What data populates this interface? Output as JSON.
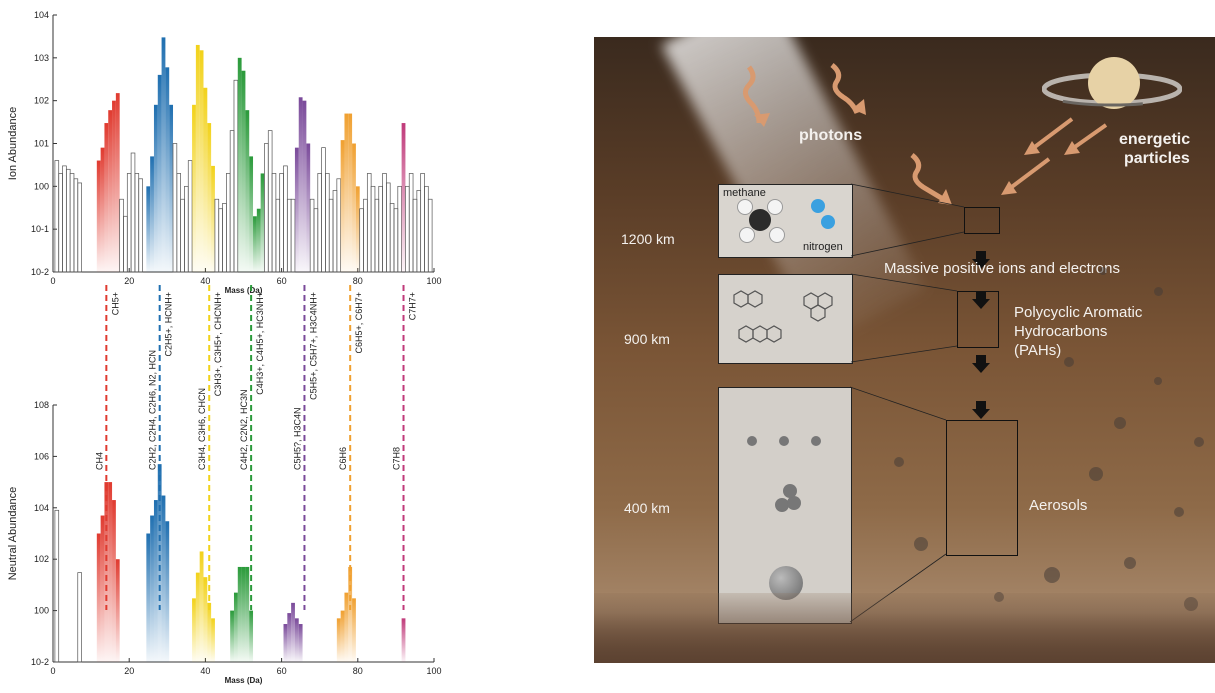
{
  "chart_data": [
    {
      "type": "bar",
      "ylabel": "Ion Abundance",
      "xlabel": "Mass (Da)",
      "yscale": "log",
      "ylim": [
        0.01,
        10000
      ],
      "xlim": [
        0,
        100
      ],
      "x_ticks": [
        "0",
        "20",
        "40",
        "60",
        "80",
        "100"
      ],
      "y_ticks": [
        "10-2",
        "10-1",
        "100",
        "101",
        "102",
        "103",
        "104"
      ],
      "x": [
        1,
        2,
        3,
        4,
        5,
        6,
        7,
        8,
        9,
        10,
        11,
        12,
        13,
        14,
        15,
        16,
        17,
        18,
        19,
        20,
        21,
        22,
        23,
        24,
        25,
        26,
        27,
        28,
        29,
        30,
        31,
        32,
        33,
        34,
        35,
        36,
        37,
        38,
        39,
        40,
        41,
        42,
        43,
        44,
        45,
        46,
        47,
        48,
        49,
        50,
        51,
        52,
        53,
        54,
        55,
        56,
        57,
        58,
        59,
        60,
        61,
        62,
        63,
        64,
        65,
        66,
        67,
        68,
        69,
        70,
        71,
        72,
        73,
        74,
        75,
        76,
        77,
        78,
        79,
        80,
        81,
        82,
        83,
        84,
        85,
        86,
        87,
        88,
        89,
        90,
        91,
        92,
        93,
        94,
        95,
        96,
        97,
        98,
        99
      ],
      "values": [
        4,
        2,
        3,
        2.5,
        2,
        1.5,
        1.2,
        0.01,
        0.01,
        0.01,
        0.01,
        4,
        8,
        30,
        60,
        100,
        150,
        0.5,
        0.2,
        2,
        6,
        2,
        1.5,
        0.01,
        1,
        5,
        80,
        400,
        3000,
        600,
        80,
        10,
        2,
        0.5,
        1,
        4,
        80,
        2000,
        1500,
        200,
        30,
        3,
        0.5,
        0.3,
        0.4,
        2,
        20,
        300,
        1000,
        500,
        60,
        5,
        0.2,
        0.3,
        2,
        10,
        20,
        2,
        0.5,
        2,
        3,
        0.5,
        0.5,
        8,
        120,
        100,
        10,
        0.5,
        0.3,
        2,
        8,
        2,
        0.5,
        0.8,
        1.5,
        12,
        50,
        50,
        10,
        1,
        0.3,
        0.5,
        2,
        1,
        0.5,
        1,
        2,
        1.2,
        0.4,
        0.3,
        1,
        30,
        1,
        2,
        0.5,
        0.8,
        2,
        1,
        0.5
      ],
      "series_groups": [
        {
          "label": "CH5+",
          "from": 12,
          "to": 17,
          "color": "#e03a2f"
        },
        {
          "label": "C2H5+, HCNH+",
          "from": 25,
          "to": 31,
          "color": "#1f6fb0"
        },
        {
          "label": "C3H3+, C3H5+, CHCNH+",
          "from": 37,
          "to": 42,
          "color": "#f2d21a"
        },
        {
          "label": "C4H3+, C4H5+, HC3NH+",
          "from": 49,
          "to": 55,
          "color": "#2a9a3a"
        },
        {
          "label": "C5H5+, C5H7+, H3C4NH+",
          "from": 64,
          "to": 67,
          "color": "#7a4a9a"
        },
        {
          "label": "C6H5+, C6H7+",
          "from": 76,
          "to": 80,
          "color": "#f0a030"
        },
        {
          "label": "C7H7+",
          "from": 92,
          "to": 92,
          "color": "#c03a7a"
        }
      ]
    },
    {
      "type": "bar",
      "ylabel": "Neutral Abundance",
      "xlabel": "Mass (Da)",
      "yscale": "log",
      "ylim": [
        0.01,
        100000000
      ],
      "xlim": [
        0,
        100
      ],
      "x_ticks": [
        "0",
        "20",
        "40",
        "60",
        "80",
        "100"
      ],
      "y_ticks": [
        "10-2",
        "100",
        "102",
        "104",
        "106",
        "108"
      ],
      "x": [
        1,
        2,
        3,
        4,
        5,
        6,
        7,
        8,
        9,
        10,
        11,
        12,
        13,
        14,
        15,
        16,
        17,
        18,
        19,
        20,
        21,
        22,
        23,
        24,
        25,
        26,
        27,
        28,
        29,
        30,
        31,
        32,
        33,
        34,
        35,
        36,
        37,
        38,
        39,
        40,
        41,
        42,
        43,
        44,
        45,
        46,
        47,
        48,
        49,
        50,
        51,
        52,
        53,
        54,
        55,
        56,
        57,
        58,
        59,
        60,
        61,
        62,
        63,
        64,
        65,
        66,
        67,
        68,
        69,
        70,
        71,
        72,
        73,
        74,
        75,
        76,
        77,
        78,
        79,
        80,
        81,
        82,
        83,
        84,
        85,
        86,
        87,
        88,
        89,
        90,
        91,
        92,
        93,
        94,
        95,
        96,
        97,
        98,
        99
      ],
      "values": [
        8000,
        0.01,
        0.01,
        0.01,
        0.01,
        0.01,
        30,
        0.01,
        0.01,
        0.01,
        0.01,
        1000,
        5000,
        100000,
        100000,
        20000,
        100,
        0.01,
        0.01,
        0.01,
        0.01,
        0.01,
        0.01,
        0.01,
        1000,
        5000,
        20000,
        500000,
        30000,
        3000,
        0.01,
        0.01,
        0.01,
        0.01,
        0.01,
        0.01,
        3,
        30,
        200,
        20,
        2,
        0.5,
        0.01,
        0.01,
        0.01,
        0.01,
        1,
        5,
        50,
        50,
        50,
        1,
        0.01,
        0.01,
        0.01,
        0.01,
        0.01,
        0.01,
        0.01,
        0.01,
        0.3,
        0.8,
        2,
        0.5,
        0.3,
        0.01,
        0.01,
        0.01,
        0.01,
        0.01,
        0.01,
        0.01,
        0.01,
        0.01,
        0.5,
        1,
        5,
        50,
        3,
        0.01,
        0.01,
        0.01,
        0.01,
        0.01,
        0.01,
        0.01,
        0.01,
        0.01,
        0.01,
        0.01,
        0.01,
        0.5,
        0.01,
        0.01,
        0.01,
        0.01,
        0.01,
        0.01,
        0.01
      ],
      "series_groups": [
        {
          "label": "CH4",
          "from": 12,
          "to": 17,
          "color": "#e03a2f"
        },
        {
          "label": "C2H2, C2H4, C2H6, N2, HCN",
          "from": 25,
          "to": 30,
          "color": "#1f6fb0"
        },
        {
          "label": "C3H4, C3H6, CHCN",
          "from": 37,
          "to": 42,
          "color": "#f2d21a"
        },
        {
          "label": "C4H2, C2N2, HC3N",
          "from": 47,
          "to": 52,
          "color": "#2a9a3a"
        },
        {
          "label": "C5H5?, H3C4N",
          "from": 61,
          "to": 65,
          "color": "#7a4a9a"
        },
        {
          "label": "C6H6",
          "from": 75,
          "to": 79,
          "color": "#f0a030"
        },
        {
          "label": "C7H8",
          "from": 92,
          "to": 92,
          "color": "#c03a7a"
        }
      ]
    }
  ],
  "connectors": [
    {
      "mass": 14,
      "color": "#e03a2f",
      "top_label": "CH5+",
      "bottom_label": "CH4"
    },
    {
      "mass": 28,
      "color": "#1f6fb0",
      "top_label": "C2H5+, HCNH+",
      "bottom_label": "C2H2, C2H4, C2H6, N2, HCN"
    },
    {
      "mass": 41,
      "color": "#f2d21a",
      "top_label": "C3H3+, C3H5+, CHCNH+",
      "bottom_label": "C3H4, C3H6, CHCN"
    },
    {
      "mass": 52,
      "color": "#2a9a3a",
      "top_label": "C4H3+, C4H5+, HC3NH+",
      "bottom_label": "C4H2, C2N2, HC3N"
    },
    {
      "mass": 66,
      "color": "#7a4a9a",
      "top_label": "C5H5+, C5H7+, H3C4NH+",
      "bottom_label": "C5H5?, H3C4N"
    },
    {
      "mass": 78,
      "color": "#f0a030",
      "top_label": "C6H5+, C6H7+",
      "bottom_label": "C6H6"
    },
    {
      "mass": 92,
      "color": "#c03a7a",
      "top_label": "C7H7+",
      "bottom_label": "C7H8"
    }
  ],
  "illustration": {
    "photons": "photons",
    "energetic": "energetic",
    "particles": "particles",
    "methane": "methane",
    "nitrogen": "nitrogen",
    "alt_1200": "1200 km",
    "alt_900": "900 km",
    "alt_400": "400 km",
    "massive_ions": "Massive positive ions and electrons",
    "pah_1": "Polycyclic Aromatic",
    "pah_2": "Hydrocarbons",
    "pah_3": "(PAHs)",
    "aerosols": "Aerosols"
  }
}
